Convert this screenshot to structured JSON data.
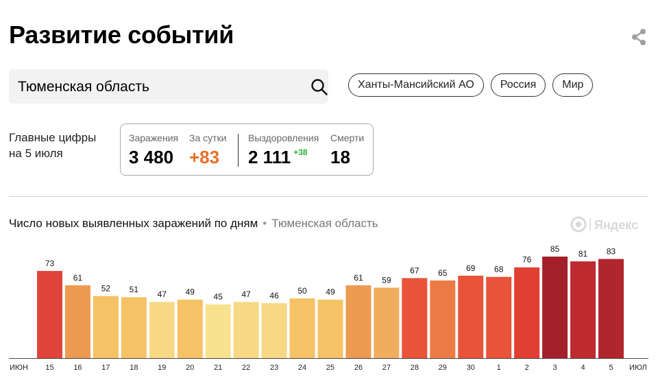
{
  "header": {
    "title": "Развитие событий",
    "share_icon": "share-icon"
  },
  "search": {
    "value": "Тюменская область",
    "icon": "search-icon"
  },
  "regions": [
    "Ханты-Мансийский АО",
    "Россия",
    "Мир"
  ],
  "figures": {
    "label_line1": "Главные цифры",
    "label_line2": "на 5 июля",
    "infections": {
      "label": "Заражения",
      "value": "3 480"
    },
    "daily": {
      "label": "За сутки",
      "value": "+83"
    },
    "recovered": {
      "label": "Выздоровления",
      "value": "2 111",
      "delta": "+38"
    },
    "deaths": {
      "label": "Смерти",
      "value": "18"
    }
  },
  "chart_header": {
    "title": "Число новых выявленных заражений по дням",
    "separator": "•",
    "region": "Тюменская область",
    "source": "Яндекс"
  },
  "colors": {
    "accent_orange": "#e8702a",
    "positive_green": "#2eaa3f",
    "weekend_red": "#cc3322"
  },
  "chart_data": {
    "type": "bar",
    "axis_start_label": "июн",
    "axis_end_label": "июл",
    "categories": [
      "15",
      "16",
      "17",
      "18",
      "19",
      "20",
      "21",
      "22",
      "23",
      "24",
      "25",
      "26",
      "27",
      "28",
      "29",
      "30",
      "1",
      "2",
      "3",
      "4",
      "5"
    ],
    "weekend": [
      false,
      false,
      false,
      false,
      false,
      true,
      true,
      false,
      false,
      false,
      false,
      false,
      true,
      true,
      false,
      false,
      false,
      false,
      false,
      true,
      true
    ],
    "values": [
      73,
      61,
      52,
      51,
      47,
      49,
      45,
      47,
      46,
      50,
      49,
      61,
      59,
      67,
      65,
      69,
      68,
      76,
      85,
      81,
      83
    ],
    "colors": [
      "#e0443a",
      "#ee9a52",
      "#f5c265",
      "#f5c265",
      "#f7d884",
      "#f5c265",
      "#f9e28f",
      "#f7d884",
      "#f7d884",
      "#f5c265",
      "#f5c265",
      "#ee9a52",
      "#f1ac5d",
      "#e8533a",
      "#ec7a45",
      "#e8533a",
      "#e8533a",
      "#e03f32",
      "#a3202a",
      "#bd2a30",
      "#b1252d"
    ],
    "ylim": [
      0,
      85
    ]
  }
}
